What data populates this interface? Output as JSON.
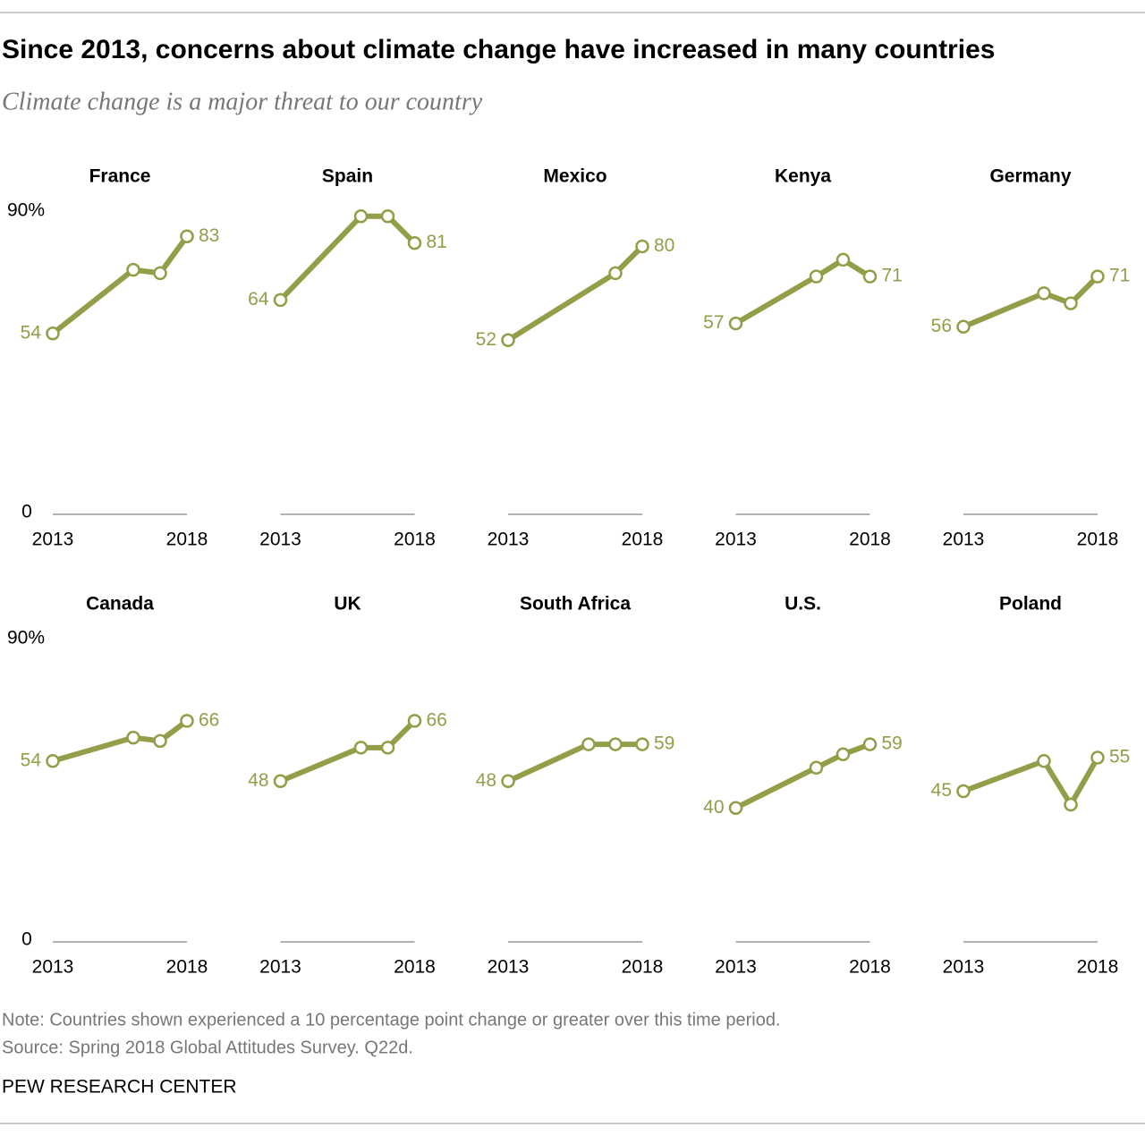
{
  "title": "Since 2013, concerns about climate change have increased in many countries",
  "subtitle": "Climate change is a major threat to our country",
  "note": "Note: Countries shown experienced a 10 percentage point change or greater over this time period.",
  "source": "Source: Spring 2018 Global Attitudes Survey. Q22d.",
  "credit": "PEW RESEARCH CENTER",
  "chart_data": [
    {
      "type": "line",
      "title": "France",
      "x": [
        2013,
        2016,
        2017,
        2018
      ],
      "values": [
        54,
        73,
        72,
        83
      ],
      "color": "#949d48",
      "xlim": [
        2013,
        2018
      ],
      "xticks": [
        2013,
        2018
      ],
      "ylim": [
        0,
        90
      ],
      "yticks": [
        0,
        {
          "value": 90,
          "label": "90%"
        }
      ]
    },
    {
      "type": "line",
      "title": "Spain",
      "x": [
        2013,
        2016,
        2017,
        2018
      ],
      "values": [
        64,
        89,
        89,
        81
      ],
      "color": "#949d48",
      "xlim": [
        2013,
        2018
      ],
      "xticks": [
        2013,
        2018
      ],
      "ylim": [
        0,
        90
      ]
    },
    {
      "type": "line",
      "title": "Mexico",
      "x": [
        2013,
        2017,
        2018
      ],
      "values": [
        52,
        72,
        80
      ],
      "color": "#949d48",
      "xlim": [
        2013,
        2018
      ],
      "xticks": [
        2013,
        2018
      ],
      "ylim": [
        0,
        90
      ]
    },
    {
      "type": "line",
      "title": "Kenya",
      "x": [
        2013,
        2016,
        2017,
        2018
      ],
      "values": [
        57,
        71,
        76,
        71
      ],
      "color": "#949d48",
      "xlim": [
        2013,
        2018
      ],
      "xticks": [
        2013,
        2018
      ],
      "ylim": [
        0,
        90
      ]
    },
    {
      "type": "line",
      "title": "Germany",
      "x": [
        2013,
        2016,
        2017,
        2018
      ],
      "values": [
        56,
        66,
        63,
        71
      ],
      "color": "#949d48",
      "xlim": [
        2013,
        2018
      ],
      "xticks": [
        2013,
        2018
      ],
      "ylim": [
        0,
        90
      ]
    },
    {
      "type": "line",
      "title": "Canada",
      "x": [
        2013,
        2016,
        2017,
        2018
      ],
      "values": [
        54,
        61,
        60,
        66
      ],
      "color": "#949d48",
      "xlim": [
        2013,
        2018
      ],
      "xticks": [
        2013,
        2018
      ],
      "ylim": [
        0,
        90
      ],
      "yticks": [
        0,
        {
          "value": 90,
          "label": "90%"
        }
      ]
    },
    {
      "type": "line",
      "title": "UK",
      "x": [
        2013,
        2016,
        2017,
        2018
      ],
      "values": [
        48,
        58,
        58,
        66
      ],
      "color": "#949d48",
      "xlim": [
        2013,
        2018
      ],
      "xticks": [
        2013,
        2018
      ],
      "ylim": [
        0,
        90
      ]
    },
    {
      "type": "line",
      "title": "South Africa",
      "x": [
        2013,
        2016,
        2017,
        2018
      ],
      "values": [
        48,
        59,
        59,
        59
      ],
      "color": "#949d48",
      "xlim": [
        2013,
        2018
      ],
      "xticks": [
        2013,
        2018
      ],
      "ylim": [
        0,
        90
      ]
    },
    {
      "type": "line",
      "title": "U.S.",
      "x": [
        2013,
        2016,
        2017,
        2018
      ],
      "values": [
        40,
        52,
        56,
        59
      ],
      "color": "#949d48",
      "xlim": [
        2013,
        2018
      ],
      "xticks": [
        2013,
        2018
      ],
      "ylim": [
        0,
        90
      ]
    },
    {
      "type": "line",
      "title": "Poland",
      "x": [
        2013,
        2016,
        2017,
        2018
      ],
      "values": [
        45,
        54,
        41,
        55
      ],
      "color": "#949d48",
      "xlim": [
        2013,
        2018
      ],
      "xticks": [
        2013,
        2018
      ],
      "ylim": [
        0,
        90
      ]
    }
  ]
}
